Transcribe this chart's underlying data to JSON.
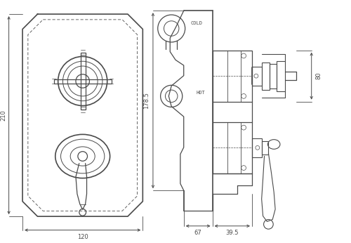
{
  "bg_color": "#ffffff",
  "line_color": "#4a4a4a",
  "dim_color": "#4a4a4a",
  "text_color": "#4a4a4a",
  "fig_width": 5.0,
  "fig_height": 3.46,
  "dpi": 100,
  "labels": {
    "dim_210": "210",
    "dim_120": "120",
    "dim_178": "178.5",
    "dim_80": "80",
    "dim_67": "67",
    "dim_395": "39.5",
    "cold": "COLD",
    "hot": "HOT"
  }
}
